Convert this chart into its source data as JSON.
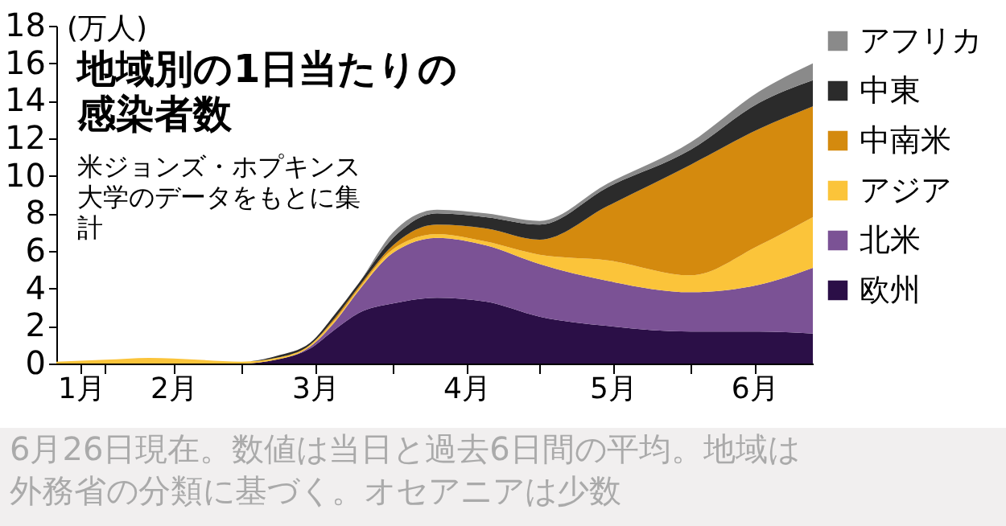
{
  "chart_data": {
    "type": "area",
    "stacked": true,
    "title": "地域別の1日当たりの感染者数",
    "subtitle": "米ジョンズ・ホプキンス大学のデータをもとに集計",
    "ylabel": "(万人)",
    "annotations": [
      "6月26日現在。数値は当日と過去6日間の平均。地域は外務省の分類に基づく。オセアニアは少数"
    ],
    "x": [
      "--01-22",
      "--02-01",
      "--02-10",
      "--02-20",
      "--03-01",
      "--03-08",
      "--03-15",
      "--03-20",
      "--03-25",
      "--04-01",
      "--04-10",
      "--04-20",
      "--05-01",
      "--05-15",
      "--06-01",
      "--06-15",
      "--06-26"
    ],
    "xlim": [
      "--01-22",
      "--06-26"
    ],
    "xticks": [
      {
        "value": "--01-27",
        "label": "1月"
      },
      {
        "value": "--02-01",
        "label": null
      },
      {
        "value": "--02-15",
        "label": "2月"
      },
      {
        "value": "--03-01",
        "label": null
      },
      {
        "value": "--03-16",
        "label": "3月"
      },
      {
        "value": "--04-01",
        "label": null
      },
      {
        "value": "--04-16",
        "label": "4月"
      },
      {
        "value": "--05-01",
        "label": null
      },
      {
        "value": "--05-16",
        "label": "5月"
      },
      {
        "value": "--06-01",
        "label": null
      },
      {
        "value": "--06-14",
        "label": "6月"
      }
    ],
    "ylim": [
      0,
      18
    ],
    "yticks": [
      0,
      2,
      4,
      6,
      8,
      10,
      12,
      14,
      16,
      18
    ],
    "grid": false,
    "legend": "right",
    "series": [
      {
        "name": "欧州",
        "color": "#2b0f47",
        "values": [
          0,
          0,
          0,
          0,
          0,
          0.2,
          0.8,
          1.8,
          2.7,
          3.2,
          3.5,
          3.3,
          2.5,
          2.0,
          1.7,
          1.7,
          1.6
        ]
      },
      {
        "name": "北米",
        "color": "#7b5295",
        "values": [
          0,
          0,
          0,
          0,
          0,
          0,
          0.1,
          0.4,
          1.2,
          2.7,
          3.2,
          3.0,
          2.8,
          2.4,
          2.1,
          2.5,
          3.5
        ]
      },
      {
        "name": "アジア",
        "color": "#fbc43a",
        "values": [
          0.1,
          0.2,
          0.3,
          0.2,
          0.1,
          0.1,
          0.1,
          0.1,
          0.1,
          0.2,
          0.2,
          0.2,
          0.5,
          1.1,
          0.9,
          2.1,
          2.7
        ]
      },
      {
        "name": "中南米",
        "color": "#d48a0e",
        "values": [
          0,
          0,
          0,
          0,
          0,
          0,
          0,
          0.1,
          0.1,
          0.2,
          0.5,
          0.7,
          0.8,
          2.9,
          5.9,
          6.2,
          5.9
        ]
      },
      {
        "name": "中東",
        "color": "#2b2b2b",
        "values": [
          0,
          0,
          0,
          0,
          0,
          0.1,
          0.1,
          0.2,
          0.2,
          0.4,
          0.6,
          0.6,
          0.8,
          1.0,
          0.8,
          1.4,
          1.4
        ]
      },
      {
        "name": "アフリカ",
        "color": "#8a8a8a",
        "values": [
          0,
          0,
          0,
          0,
          0,
          0,
          0,
          0,
          0,
          0.3,
          0.2,
          0.2,
          0.2,
          0.2,
          0.4,
          0.6,
          0.9
        ]
      }
    ]
  }
}
